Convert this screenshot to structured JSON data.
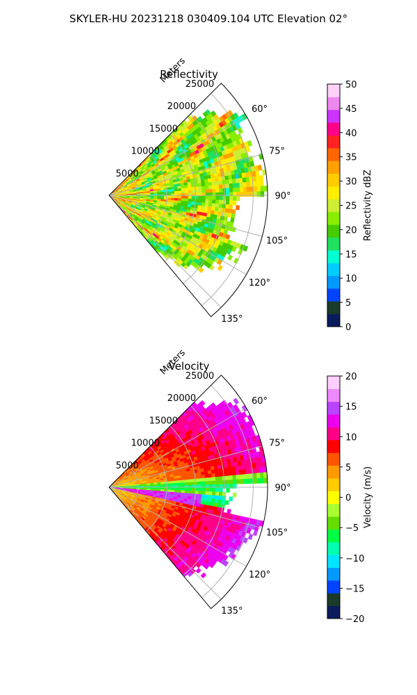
{
  "suptitle": "SKYLER-HU  20231218  030409.104 UTC Elevation 02°",
  "colors": {
    "reflectivity_scale": [
      "#0a1a5c",
      "#1a3a2a",
      "#0044ff",
      "#0099ff",
      "#00ccff",
      "#00ffd0",
      "#20e060",
      "#44cc00",
      "#88ee00",
      "#ccee33",
      "#ffee00",
      "#ffcc00",
      "#ffa000",
      "#ff6600",
      "#ff2222",
      "#ff0088",
      "#cc33ff",
      "#ee88ee",
      "#ffd0f8"
    ],
    "velocity_scale": [
      "#0a1a5c",
      "#1a3a2a",
      "#0044ff",
      "#0099ff",
      "#00e5ff",
      "#00ffb0",
      "#00ff44",
      "#66dd00",
      "#aaff33",
      "#ffff00",
      "#ffcc00",
      "#ff9900",
      "#ff5500",
      "#ff0000",
      "#ff0088",
      "#ee00ee",
      "#bb44ff",
      "#ee88ff",
      "#ffd0ff"
    ]
  },
  "chart_data": [
    {
      "type": "heatmap",
      "projection": "polar-sector",
      "title": "Reflectivity",
      "range_label": "Meters",
      "range_ticks": [
        5000,
        10000,
        15000,
        20000,
        25000
      ],
      "rmax": 27500,
      "azimuth_ticks": [
        "60°",
        "75°",
        "90°",
        "105°",
        "120°",
        "135°"
      ],
      "azimuth_tick_values": [
        60,
        75,
        90,
        105,
        120,
        135
      ],
      "azimuth_range": [
        45,
        140
      ],
      "colorbar": {
        "label": "Reflectivity dBZ",
        "vmin": 0,
        "vmax": 50,
        "ticks": [
          "0",
          "5",
          "10",
          "15",
          "20",
          "25",
          "30",
          "35",
          "40",
          "45",
          "50"
        ]
      },
      "dominant_values_range": [
        18,
        40
      ]
    },
    {
      "type": "heatmap",
      "projection": "polar-sector",
      "title": "Velocity",
      "range_label": "Meters",
      "range_ticks": [
        5000,
        10000,
        15000,
        20000,
        25000
      ],
      "rmax": 27500,
      "azimuth_ticks": [
        "60°",
        "75°",
        "90°",
        "105°",
        "120°",
        "135°"
      ],
      "azimuth_tick_values": [
        60,
        75,
        90,
        105,
        120,
        135
      ],
      "azimuth_range": [
        45,
        140
      ],
      "colorbar": {
        "label": "Velocity (m/s)",
        "vmin": -20,
        "vmax": 20,
        "ticks": [
          "−20",
          "−15",
          "−10",
          "−5",
          "0",
          "5",
          "10",
          "15",
          "20"
        ]
      },
      "dominant_values_range": [
        -12,
        18
      ]
    }
  ]
}
